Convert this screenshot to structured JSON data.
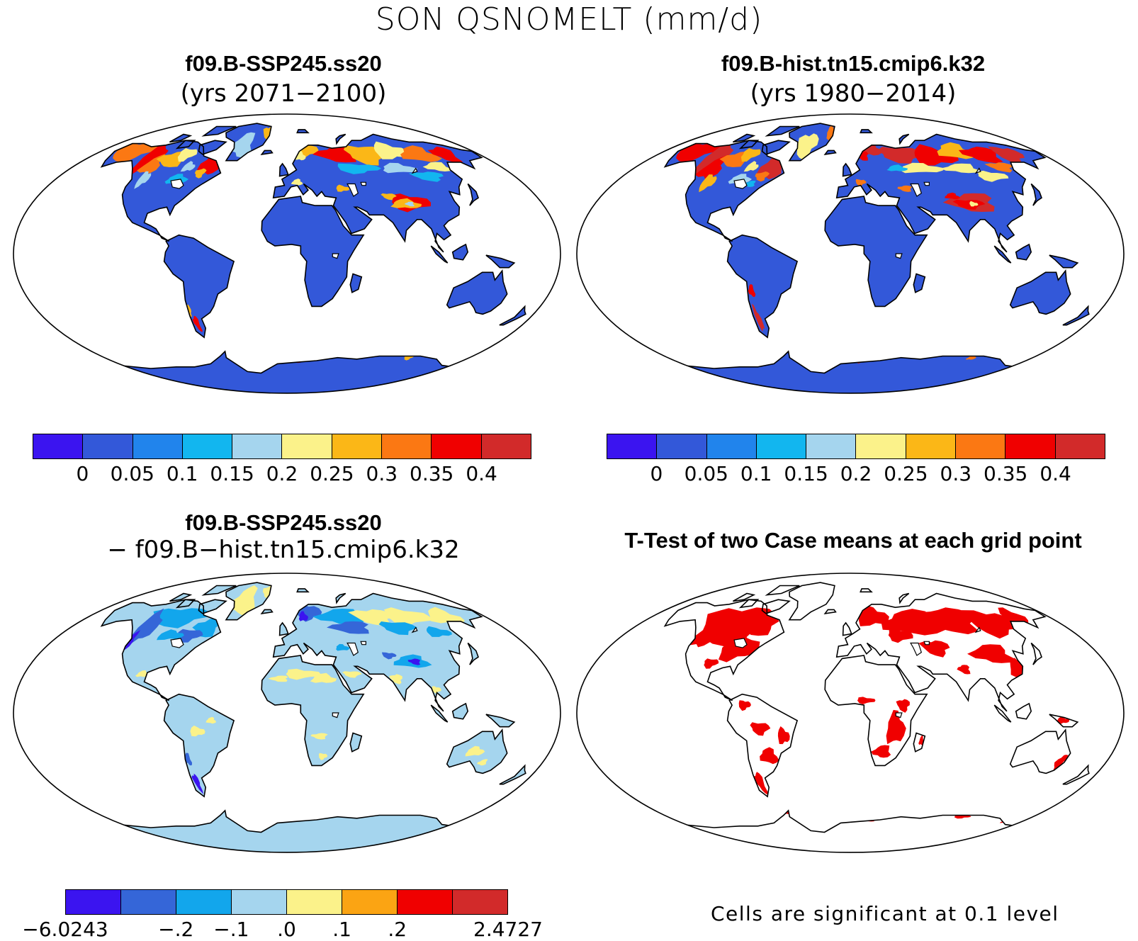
{
  "figure": {
    "title": "SON QSNOMELT (mm/d)"
  },
  "panels": [
    {
      "id": "future",
      "title": "f09.B-SSP245.ss20",
      "subtitle": "(yrs 2071−2100)",
      "land_color": "#3358d9"
    },
    {
      "id": "historical",
      "title": "f09.B-hist.tn15.cmip6.k32",
      "subtitle": "(yrs 1980−2014)",
      "land_color": "#3358d9"
    },
    {
      "id": "difference",
      "title": "f09.B-SSP245.ss20",
      "subtitle": "−  f09.B−hist.tn15.cmip6.k32",
      "land_color": "#a5d5ee"
    },
    {
      "id": "ttest",
      "title": "T-Test of two Case means at each grid point",
      "subtitle": "",
      "land_color": "#ffffff",
      "sig_color": "#f00000"
    }
  ],
  "colorbars": {
    "abs": {
      "colors": [
        "#3b14f0",
        "#3358d9",
        "#2184ec",
        "#12b6ef",
        "#a5d5ee",
        "#fbf28a",
        "#fbb717",
        "#fb7813",
        "#f00000",
        "#d22a2a"
      ],
      "labels": [
        "0",
        "0.05",
        "0.1",
        "0.15",
        "0.2",
        "0.25",
        "0.3",
        "0.35",
        "0.4"
      ]
    },
    "diff": {
      "colors": [
        "#3b14f0",
        "#3566d8",
        "#12a6ec",
        "#a5d5ee",
        "#fbf28a",
        "#fba413",
        "#f00000",
        "#d22a2a"
      ],
      "labels": [
        "−6.0243",
        "−.2",
        "−.1",
        ".0",
        ".1",
        ".2",
        "2.4727"
      ]
    }
  },
  "ttest_note": "Cells are significant at 0.1 level"
}
